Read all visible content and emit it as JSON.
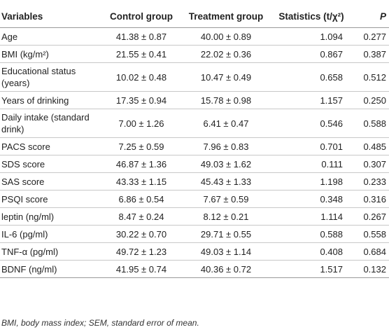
{
  "table": {
    "headers": {
      "variables": "Variables",
      "control": "Control group",
      "treatment": "Treatment group",
      "statistics": "Statistics (t/χ²)",
      "p": "P"
    },
    "rows": [
      {
        "variable": "Age",
        "control": "41.38 ± 0.87",
        "treatment": "40.00 ± 0.89",
        "statistics": "1.094",
        "p": "0.277"
      },
      {
        "variable": "BMI (kg/m²)",
        "control": "21.55 ± 0.41",
        "treatment": "22.02 ± 0.36",
        "statistics": "0.867",
        "p": "0.387"
      },
      {
        "variable": "Educational status (years)",
        "control": "10.02 ± 0.48",
        "treatment": "10.47 ± 0.49",
        "statistics": "0.658",
        "p": "0.512"
      },
      {
        "variable": "Years of drinking",
        "control": "17.35 ± 0.94",
        "treatment": "15.78 ± 0.98",
        "statistics": "1.157",
        "p": "0.250"
      },
      {
        "variable": "Daily intake (standard drink)",
        "control": "7.00 ± 1.26",
        "treatment": "6.41 ± 0.47",
        "statistics": "0.546",
        "p": "0.588"
      },
      {
        "variable": "PACS score",
        "control": "7.25 ± 0.59",
        "treatment": "7.96 ± 0.83",
        "statistics": "0.701",
        "p": "0.485"
      },
      {
        "variable": "SDS score",
        "control": "46.87 ± 1.36",
        "treatment": "49.03 ± 1.62",
        "statistics": "0.111",
        "p": "0.307"
      },
      {
        "variable": "SAS score",
        "control": "43.33 ± 1.15",
        "treatment": "45.43 ± 1.33",
        "statistics": "1.198",
        "p": "0.233"
      },
      {
        "variable": "PSQI score",
        "control": "6.86 ± 0.54",
        "treatment": "7.67 ± 0.59",
        "statistics": "0.348",
        "p": "0.316"
      },
      {
        "variable": "leptin (ng/ml)",
        "control": "8.47 ± 0.24",
        "treatment": "8.12 ± 0.21",
        "statistics": "1.114",
        "p": "0.267"
      },
      {
        "variable": "IL-6 (pg/ml)",
        "control": "30.22 ± 0.70",
        "treatment": "29.71 ± 0.55",
        "statistics": "0.588",
        "p": "0.558"
      },
      {
        "variable": "TNF-α (pg/ml)",
        "control": "49.72 ± 1.23",
        "treatment": "49.03 ± 1.14",
        "statistics": "0.408",
        "p": "0.684"
      },
      {
        "variable": "BDNF (ng/ml)",
        "control": "41.95 ± 0.74",
        "treatment": "40.36 ± 0.72",
        "statistics": "1.517",
        "p": "0.132"
      }
    ]
  },
  "footnote": "BMI, body mass index; SEM, standard error of mean."
}
